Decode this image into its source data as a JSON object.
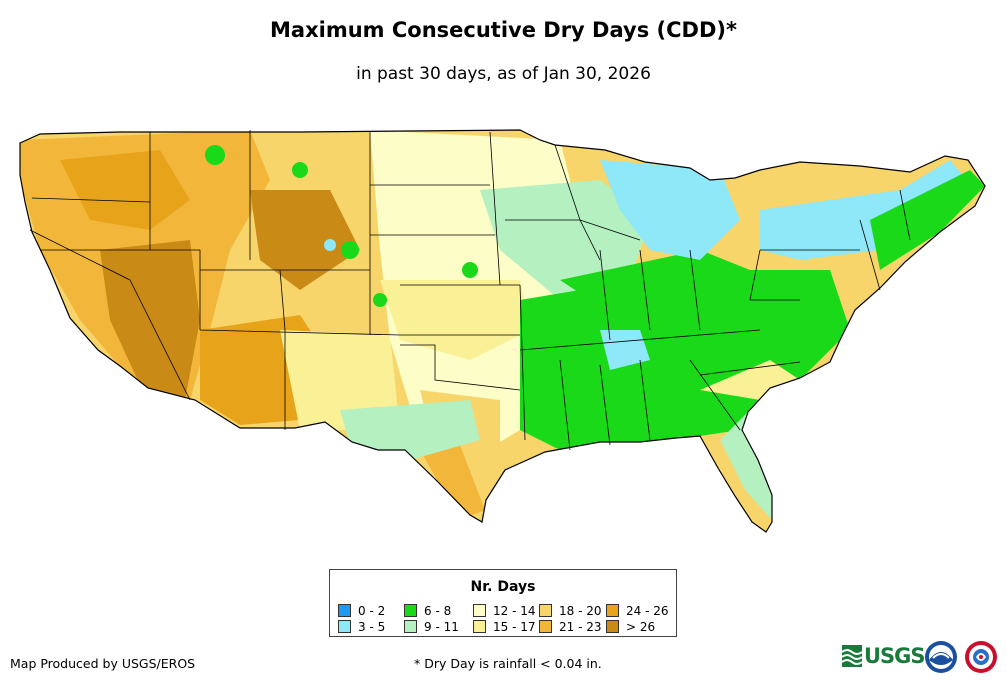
{
  "header": {
    "title": "Maximum Consecutive Dry Days (CDD)*",
    "subtitle": "in past 30 days, as of Jan 30, 2026"
  },
  "map": {
    "region": "contiguous-united-states",
    "state-borders": true
  },
  "legend": {
    "title": "Nr. Days",
    "items": [
      {
        "label": "0 - 2",
        "color": "#1e9bf0"
      },
      {
        "label": "3 - 5",
        "color": "#8ee8f8"
      },
      {
        "label": "6 - 8",
        "color": "#19d919"
      },
      {
        "label": "9 - 11",
        "color": "#b4f0c0"
      },
      {
        "label": "12 - 14",
        "color": "#fdfdc8"
      },
      {
        "label": "15 - 17",
        "color": "#faf095"
      },
      {
        "label": "18 - 20",
        "color": "#f8d56a"
      },
      {
        "label": "21 - 23",
        "color": "#f2b73a"
      },
      {
        "label": "24 - 26",
        "color": "#e7a41b"
      },
      {
        "label": "> 26",
        "color": "#c98a16"
      }
    ]
  },
  "footer": {
    "producer": "Map Produced by USGS/EROS",
    "note": "* Dry Day is rainfall < 0.04 in."
  },
  "logos": {
    "usgs": {
      "text": "USGS",
      "icon": "usgs-waves-icon",
      "color": "#1a7a3c"
    },
    "noaa": {
      "icon": "noaa-emblem-icon"
    },
    "nws": {
      "icon": "nws-emblem-icon"
    }
  }
}
